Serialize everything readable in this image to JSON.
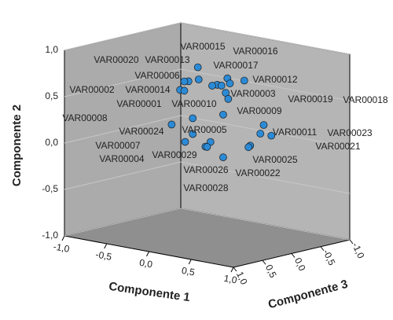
{
  "chart_data": {
    "type": "scatter3d",
    "xlabel": "Componente 1",
    "ylabel": "Componente 2",
    "zlabel": "Componente 3",
    "labels": [
      "VAR00015",
      "VAR00016",
      "VAR00020",
      "VAR00013",
      "VAR00017",
      "VAR00006",
      "VAR00012",
      "VAR00002",
      "VAR00014",
      "VAR00003",
      "VAR00001",
      "VAR00010",
      "VAR00019",
      "VAR00018",
      "VAR00009",
      "VAR00008",
      "VAR00024",
      "VAR00005",
      "VAR00011",
      "VAR00023",
      "VAR00007",
      "VAR00021",
      "VAR00004",
      "VAR00029",
      "VAR00025",
      "VAR00026",
      "VAR00022",
      "VAR00028"
    ],
    "x": [
      -0.11,
      0.24,
      -0.22,
      -0.1,
      0.12,
      -0.27,
      0.44,
      -0.32,
      -0.27,
      0.22,
      0.06,
      0.27,
      0.25,
      0.17,
      0.19,
      -0.42,
      -0.17,
      -0.17,
      0.67,
      0.76,
      -0.26,
      0.63,
      0.04,
      -0.02,
      0.51,
      0.0,
      0.19,
      0.49
    ],
    "y": [
      0.82,
      0.76,
      0.65,
      0.69,
      0.67,
      0.64,
      0.77,
      0.54,
      0.54,
      0.6,
      0.65,
      0.71,
      0.54,
      0.67,
      0.36,
      0.15,
      0.26,
      0.09,
      0.33,
      0.23,
      -0.01,
      0.23,
      0.04,
      -0.02,
      0.08,
      -0.02,
      -0.1,
      0.06
    ],
    "z": [
      0,
      0,
      0,
      0,
      0,
      0,
      0,
      0,
      0,
      0,
      0,
      0,
      0,
      0,
      0,
      0,
      0,
      0,
      0,
      0,
      0,
      0,
      0,
      0,
      0,
      0,
      0,
      0
    ],
    "color": "#2b8ad6",
    "xlim": [
      -1,
      1
    ],
    "ylim": [
      -1,
      1
    ],
    "zlim": [
      -1,
      1
    ],
    "xticks": [
      {
        "value": -1,
        "label": "-1,0"
      },
      {
        "value": -0.5,
        "label": "-0,5"
      },
      {
        "value": 0,
        "label": "0,0"
      },
      {
        "value": 0.5,
        "label": "0,5"
      },
      {
        "value": 1,
        "label": "1,0"
      }
    ],
    "yticks": [
      {
        "value": -1,
        "label": "-1,0"
      },
      {
        "value": -0.5,
        "label": "-0,5"
      },
      {
        "value": 0,
        "label": "0,0"
      },
      {
        "value": 0.5,
        "label": "0,5"
      },
      {
        "value": 1,
        "label": "1,0"
      }
    ],
    "zticks": [
      {
        "value": -1,
        "label": "-1,0"
      },
      {
        "value": -0.5,
        "label": "-0,5"
      },
      {
        "value": 0,
        "label": "0,0"
      },
      {
        "value": 0.5,
        "label": "0,5"
      },
      {
        "value": 1,
        "label": "1,0"
      }
    ],
    "grid": true
  }
}
